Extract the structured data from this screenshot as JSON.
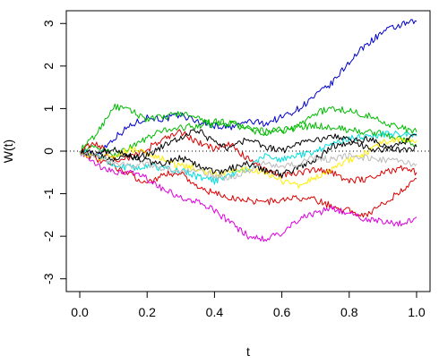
{
  "chart_data": {
    "type": "line",
    "title": "",
    "xlabel": "t",
    "ylabel": "W(t)",
    "xlim": [
      -0.04,
      1.04
    ],
    "ylim": [
      -3.3,
      3.3
    ],
    "x_ticks": [
      0.0,
      0.2,
      0.4,
      0.6,
      0.8,
      1.0
    ],
    "x_tick_labels": [
      "0.0",
      "0.2",
      "0.4",
      "0.6",
      "0.8",
      "1.0"
    ],
    "y_ticks": [
      -3,
      -2,
      -1,
      0,
      1,
      2,
      3
    ],
    "y_tick_labels": [
      "-3",
      "-2",
      "-1",
      "0",
      "1",
      "2",
      "3"
    ],
    "reference_line": {
      "y": 0,
      "style": "dotted"
    },
    "grid": false,
    "legend": "none",
    "series": [
      {
        "color": "#0000cc",
        "x": [
          0,
          0.05,
          0.1,
          0.15,
          0.2,
          0.25,
          0.3,
          0.35,
          0.4,
          0.45,
          0.5,
          0.55,
          0.6,
          0.65,
          0.7,
          0.75,
          0.8,
          0.85,
          0.9,
          0.95,
          1.0
        ],
        "y": [
          0,
          -0.1,
          0.3,
          0.6,
          0.8,
          0.75,
          0.85,
          0.7,
          0.6,
          0.55,
          0.7,
          0.65,
          0.8,
          1.0,
          1.3,
          1.6,
          2.1,
          2.5,
          2.8,
          2.95,
          3.05
        ]
      },
      {
        "color": "#00bb00",
        "x": [
          0,
          0.05,
          0.1,
          0.15,
          0.2,
          0.25,
          0.3,
          0.35,
          0.4,
          0.45,
          0.5,
          0.55,
          0.6,
          0.65,
          0.7,
          0.75,
          0.8,
          0.85,
          0.9,
          0.95,
          1.0
        ],
        "y": [
          0,
          0.4,
          1.05,
          0.95,
          0.75,
          0.8,
          0.9,
          0.75,
          0.6,
          0.65,
          0.5,
          0.4,
          0.45,
          0.6,
          0.9,
          1.0,
          0.95,
          0.85,
          0.7,
          0.55,
          0.45
        ]
      },
      {
        "color": "#00bb00",
        "x": [
          0,
          0.05,
          0.1,
          0.15,
          0.2,
          0.25,
          0.3,
          0.35,
          0.4,
          0.45,
          0.5,
          0.55,
          0.6,
          0.65,
          0.7,
          0.75,
          0.8,
          0.85,
          0.9,
          0.95,
          1.0
        ],
        "y": [
          0,
          0.1,
          -0.1,
          0.1,
          0.3,
          0.5,
          0.55,
          0.6,
          0.7,
          0.65,
          0.55,
          0.45,
          0.5,
          0.55,
          0.6,
          0.55,
          0.5,
          0.45,
          0.4,
          0.3,
          0.15
        ]
      },
      {
        "color": "#dd0000",
        "x": [
          0,
          0.05,
          0.1,
          0.15,
          0.2,
          0.25,
          0.3,
          0.35,
          0.4,
          0.45,
          0.5,
          0.55,
          0.6,
          0.65,
          0.7,
          0.75,
          0.8,
          0.85,
          0.9,
          0.95,
          1.0
        ],
        "y": [
          0,
          -0.2,
          -0.35,
          -0.55,
          -0.75,
          -0.55,
          -0.5,
          -0.85,
          -1.0,
          -1.1,
          -1.15,
          -1.2,
          -1.15,
          -1.1,
          -1.15,
          -1.3,
          -1.4,
          -1.5,
          -1.25,
          -0.95,
          -0.65
        ]
      },
      {
        "color": "#dd0000",
        "x": [
          0,
          0.05,
          0.1,
          0.15,
          0.2,
          0.25,
          0.3,
          0.35,
          0.4,
          0.45,
          0.5,
          0.55,
          0.6,
          0.65,
          0.7,
          0.75,
          0.8,
          0.85,
          0.9,
          0.95,
          1.0
        ],
        "y": [
          0,
          0.2,
          -0.2,
          -0.15,
          0.05,
          0.3,
          0.45,
          0.2,
          0.05,
          0.15,
          -0.2,
          -0.45,
          -0.55,
          -0.5,
          -0.45,
          -0.5,
          -0.7,
          -0.65,
          -0.5,
          -0.4,
          -0.5
        ]
      },
      {
        "color": "#dd00dd",
        "x": [
          0,
          0.05,
          0.1,
          0.15,
          0.2,
          0.25,
          0.3,
          0.35,
          0.4,
          0.45,
          0.5,
          0.55,
          0.6,
          0.65,
          0.7,
          0.75,
          0.8,
          0.85,
          0.9,
          0.95,
          1.0
        ],
        "y": [
          0,
          -0.35,
          -0.5,
          -0.5,
          -0.65,
          -0.9,
          -1.1,
          -1.2,
          -1.4,
          -1.7,
          -2.0,
          -2.05,
          -1.95,
          -1.6,
          -1.45,
          -1.35,
          -1.45,
          -1.6,
          -1.65,
          -1.7,
          -1.55
        ]
      },
      {
        "color": "#00dddd",
        "x": [
          0,
          0.05,
          0.1,
          0.15,
          0.2,
          0.25,
          0.3,
          0.35,
          0.4,
          0.45,
          0.5,
          0.55,
          0.6,
          0.65,
          0.7,
          0.75,
          0.8,
          0.85,
          0.9,
          0.95,
          1.0
        ],
        "y": [
          0,
          -0.1,
          -0.3,
          -0.4,
          -0.35,
          -0.4,
          -0.45,
          -0.6,
          -0.7,
          -0.55,
          -0.4,
          -0.1,
          -0.2,
          -0.1,
          0.0,
          0.2,
          0.3,
          0.35,
          0.4,
          0.4,
          0.35
        ]
      },
      {
        "color": "#ffee00",
        "x": [
          0,
          0.05,
          0.1,
          0.15,
          0.2,
          0.25,
          0.3,
          0.35,
          0.4,
          0.45,
          0.5,
          0.55,
          0.6,
          0.65,
          0.7,
          0.75,
          0.8,
          0.85,
          0.9,
          0.95,
          1.0
        ],
        "y": [
          0,
          -0.15,
          -0.1,
          0.05,
          -0.05,
          -0.2,
          -0.35,
          -0.4,
          -0.55,
          -0.5,
          -0.4,
          -0.5,
          -0.7,
          -0.8,
          -0.6,
          -0.4,
          -0.2,
          -0.05,
          0.2,
          0.3,
          0.25
        ]
      },
      {
        "color": "#000000",
        "x": [
          0,
          0.05,
          0.1,
          0.15,
          0.2,
          0.25,
          0.3,
          0.35,
          0.4,
          0.45,
          0.5,
          0.55,
          0.6,
          0.65,
          0.7,
          0.75,
          0.8,
          0.85,
          0.9,
          0.95,
          1.0
        ],
        "y": [
          0,
          -0.05,
          0.05,
          -0.15,
          -0.1,
          0.15,
          0.3,
          0.5,
          0.2,
          0.05,
          0.3,
          0.1,
          0.0,
          0.2,
          0.25,
          0.35,
          0.3,
          0.1,
          0.0,
          0.15,
          0.4
        ]
      },
      {
        "color": "#000000",
        "x": [
          0,
          0.05,
          0.1,
          0.15,
          0.2,
          0.25,
          0.3,
          0.35,
          0.4,
          0.45,
          0.5,
          0.55,
          0.6,
          0.65,
          0.7,
          0.75,
          0.8,
          0.85,
          0.9,
          0.95,
          1.0
        ],
        "y": [
          0,
          -0.1,
          -0.2,
          -0.1,
          -0.25,
          -0.3,
          -0.15,
          -0.35,
          -0.5,
          -0.4,
          -0.3,
          -0.45,
          -0.55,
          -0.4,
          -0.2,
          0.1,
          0.2,
          0.3,
          0.15,
          0.0,
          0.1
        ]
      },
      {
        "color": "#bbbbbb",
        "x": [
          0,
          0.05,
          0.1,
          0.15,
          0.2,
          0.25,
          0.3,
          0.35,
          0.4,
          0.45,
          0.5,
          0.55,
          0.6,
          0.65,
          0.7,
          0.75,
          0.8,
          0.85,
          0.9,
          0.95,
          1.0
        ],
        "y": [
          0,
          -0.1,
          -0.25,
          -0.35,
          -0.3,
          -0.4,
          -0.5,
          -0.45,
          -0.6,
          -0.65,
          -0.45,
          -0.3,
          -0.35,
          -0.3,
          -0.15,
          -0.2,
          -0.1,
          -0.15,
          -0.2,
          -0.25,
          -0.3
        ]
      }
    ]
  }
}
